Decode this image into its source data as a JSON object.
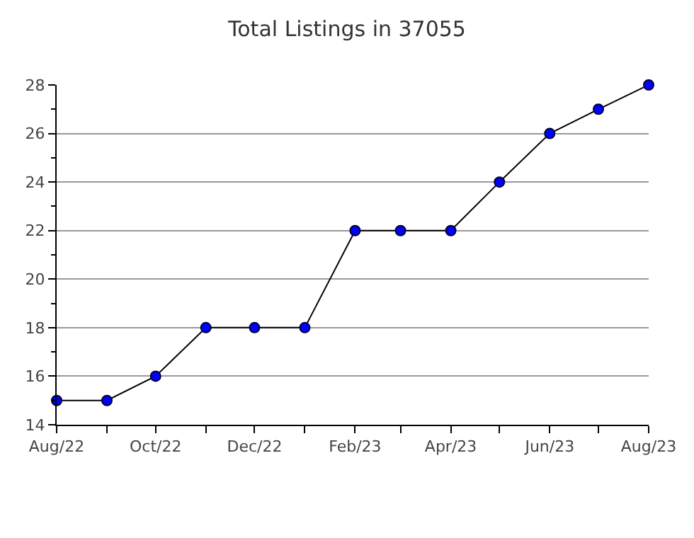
{
  "chart_data": {
    "type": "line",
    "title": "Total Listings in 37055",
    "x": [
      "2022-08",
      "2022-09",
      "2022-10",
      "2022-11",
      "2022-12",
      "2023-01",
      "2023-02",
      "2023-03",
      "2023-04",
      "2023-05",
      "2023-06",
      "2023-07",
      "2023-08"
    ],
    "series": [
      {
        "color": "#0000ff",
        "values": [
          15,
          15,
          16,
          18,
          18,
          18,
          22,
          22,
          22,
          24,
          26,
          27,
          28
        ]
      }
    ],
    "xlim": [
      "2022-08",
      "2023-08"
    ],
    "xticks": [
      {
        "value": "2022-08",
        "label": "Aug/22"
      },
      {
        "value": "2022-09",
        "label": null
      },
      {
        "value": "2022-10",
        "label": "Oct/22"
      },
      {
        "value": "2022-11",
        "label": null
      },
      {
        "value": "2022-12",
        "label": "Dec/22"
      },
      {
        "value": "2023-01",
        "label": null
      },
      {
        "value": "2023-02",
        "label": "Feb/23"
      },
      {
        "value": "2023-03",
        "label": null
      },
      {
        "value": "2023-04",
        "label": "Apr/23"
      },
      {
        "value": "2023-05",
        "label": null
      },
      {
        "value": "2023-06",
        "label": "Jun/23"
      },
      {
        "value": "2023-07",
        "label": null
      },
      {
        "value": "2023-08",
        "label": "Aug/23"
      }
    ],
    "ylim": [
      14,
      28
    ],
    "yticks": [
      14,
      {
        "value": 15,
        "label": null
      },
      16,
      {
        "value": 17,
        "label": null
      },
      18,
      {
        "value": 19,
        "label": null
      },
      20,
      {
        "value": 21,
        "label": null
      },
      22,
      {
        "value": 23,
        "label": null
      },
      24,
      {
        "value": 25,
        "label": null
      },
      26,
      {
        "value": 27,
        "label": null
      },
      28
    ],
    "grid": "y",
    "marker": "circle",
    "line_style": "solid"
  }
}
